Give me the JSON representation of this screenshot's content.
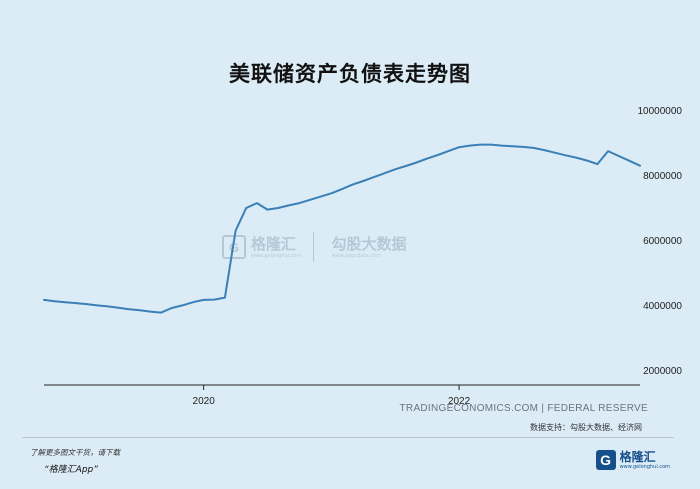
{
  "title": "美联储资产负债表走势图",
  "source_text": "TRADINGECONOMICS.COM | FEDERAL RESERVE",
  "support_text": "数据支持：勾股大数据、经济网",
  "promo_line1": "了解更多图文干货，请下载",
  "promo_line2": "“格隆汇App”",
  "logo": {
    "name": "格隆汇",
    "url": "www.gelonghui.com",
    "mark": "G"
  },
  "watermark": {
    "name1": "格隆汇",
    "url1": "www.gelonghui.com",
    "name2": "勾股大数据",
    "url2": "www.gogudata.com",
    "mark": "G"
  },
  "colors": {
    "background": "#dcecf7",
    "line": "#3a7fb5",
    "axis": "#222222"
  },
  "chart_data": {
    "type": "line",
    "title": "美联储资产负债表走势图",
    "xlabel": "",
    "ylabel": "",
    "x_ticks": [
      "2020",
      "2022"
    ],
    "y_ticks": [
      2000000,
      4000000,
      6000000,
      8000000,
      10000000
    ],
    "y_tick_labels": [
      "2000000",
      "4000000",
      "6000000",
      "8000000",
      "10000000"
    ],
    "ylim": [
      1550000,
      10200000
    ],
    "xlim": [
      "2018-10",
      "2023-06"
    ],
    "grid": false,
    "legend": "none",
    "series": [
      {
        "x": [
          "2018-10",
          "2018-11",
          "2018-12",
          "2019-01",
          "2019-02",
          "2019-03",
          "2019-04",
          "2019-05",
          "2019-06",
          "2019-07",
          "2019-08",
          "2019-09",
          "2019-10",
          "2019-11",
          "2019-12",
          "2020-01",
          "2020-02",
          "2020-03",
          "2020-04",
          "2020-05",
          "2020-06",
          "2020-07",
          "2020-08",
          "2020-09",
          "2020-10",
          "2020-11",
          "2020-12",
          "2021-01",
          "2021-02",
          "2021-03",
          "2021-04",
          "2021-05",
          "2021-06",
          "2021-07",
          "2021-08",
          "2021-09",
          "2021-10",
          "2021-11",
          "2021-12",
          "2022-01",
          "2022-02",
          "2022-03",
          "2022-04",
          "2022-05",
          "2022-06",
          "2022-07",
          "2022-08",
          "2022-09",
          "2022-10",
          "2022-11",
          "2022-12",
          "2023-01",
          "2023-02",
          "2023-03",
          "2023-04",
          "2023-05",
          "2023-06"
        ],
        "y": [
          4170000,
          4130000,
          4100000,
          4070000,
          4040000,
          4000000,
          3970000,
          3930000,
          3880000,
          3850000,
          3810000,
          3780000,
          3920000,
          4000000,
          4100000,
          4170000,
          4180000,
          4240000,
          6300000,
          7000000,
          7150000,
          6950000,
          7000000,
          7080000,
          7150000,
          7250000,
          7350000,
          7450000,
          7580000,
          7720000,
          7830000,
          7950000,
          8070000,
          8190000,
          8290000,
          8400000,
          8520000,
          8630000,
          8750000,
          8870000,
          8920000,
          8950000,
          8950000,
          8920000,
          8900000,
          8880000,
          8850000,
          8780000,
          8700000,
          8620000,
          8550000,
          8460000,
          8350000,
          8750000,
          8600000,
          8450000,
          8300000
        ]
      }
    ]
  }
}
